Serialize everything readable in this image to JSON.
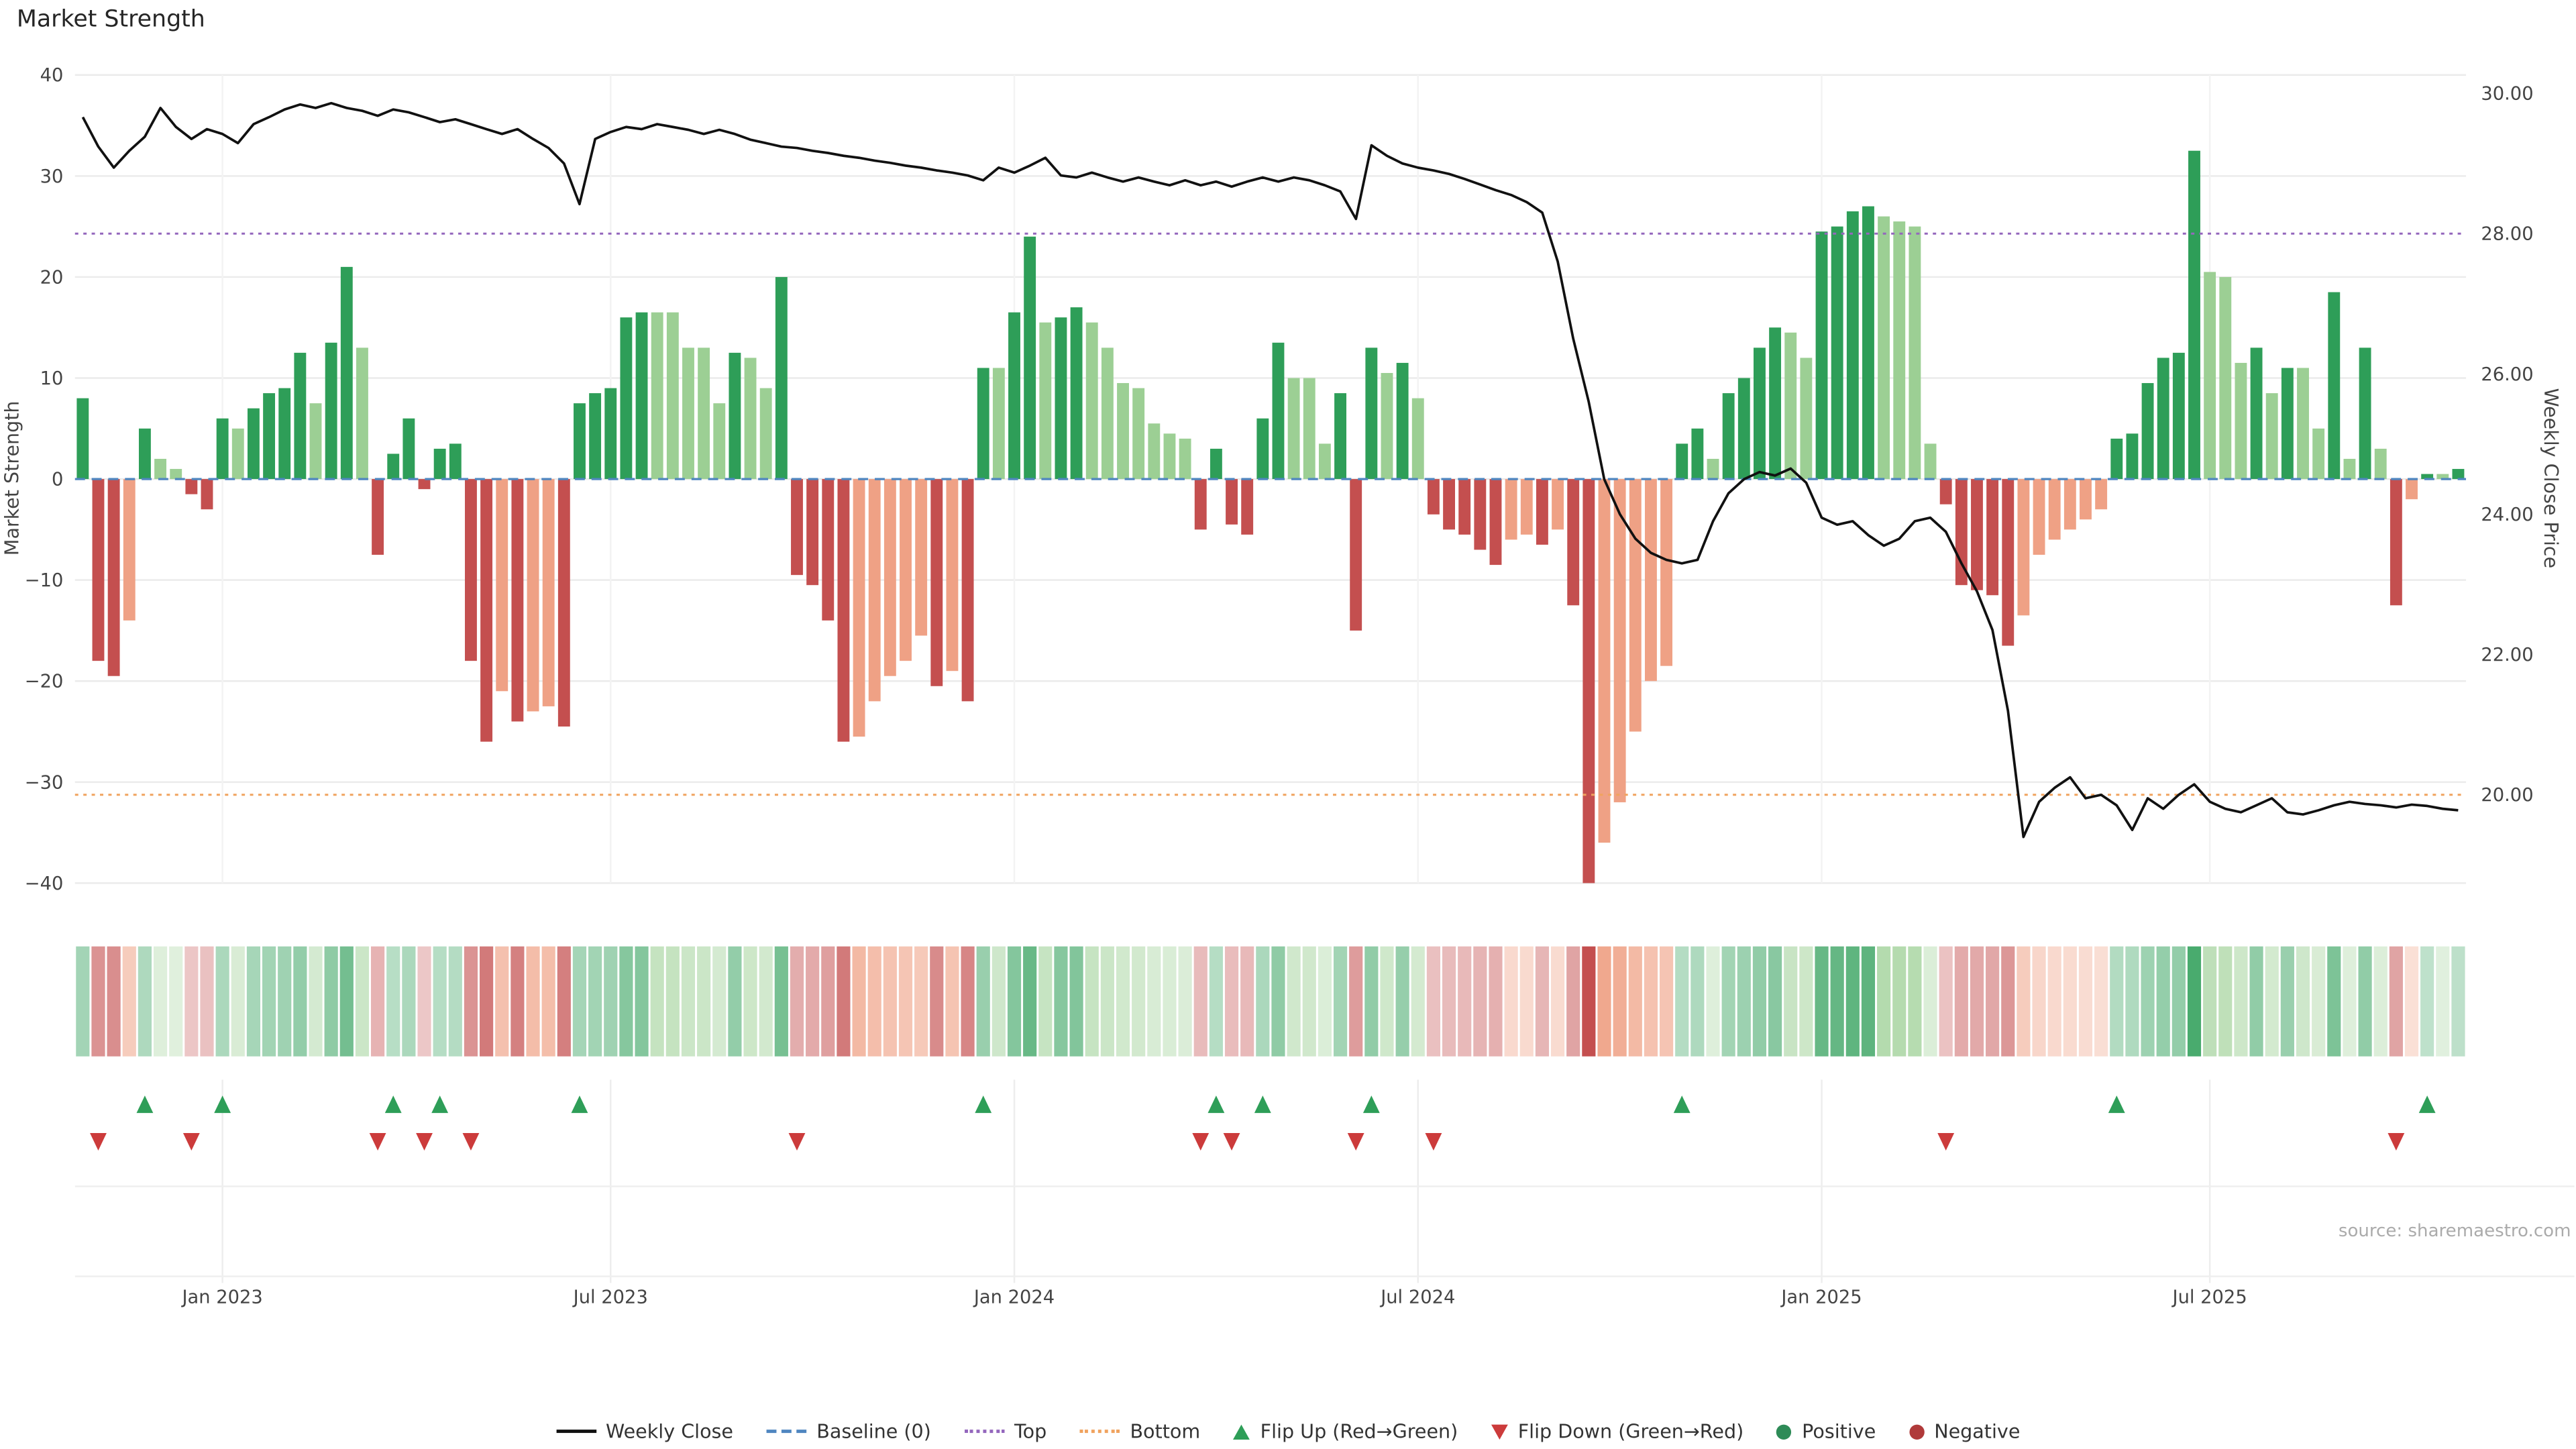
{
  "title": "Market Strength",
  "source": "source: sharemaestro.com",
  "axes": {
    "left_label": "Market Strength",
    "right_label": "Weekly Close Price",
    "left_ticks": [
      40,
      30,
      20,
      10,
      0,
      -10,
      -20,
      -30,
      -40
    ],
    "right_ticks": [
      {
        "value": 30,
        "label": "30.00"
      },
      {
        "value": 28,
        "label": "28.00"
      },
      {
        "value": 26,
        "label": "26.00"
      },
      {
        "value": 24,
        "label": "24.00"
      },
      {
        "value": 22,
        "label": "22.00"
      },
      {
        "value": 20,
        "label": "20.00"
      }
    ]
  },
  "thresholds": {
    "baseline": 0,
    "top_price": 28.0,
    "bottom_price": 20.0
  },
  "colors": {
    "bar_pos_dark": "#2e9e58",
    "bar_pos_light": "#9ccf94",
    "bar_neg_dark": "#c44f4f",
    "bar_neg_light": "#efa185",
    "line": "#111111",
    "baseline": "#4f86c0",
    "top": "#9467bd",
    "bottom": "#f0a35f",
    "grid": "#ebebeb",
    "grid_faint": "#f3f3f3",
    "flip_up": "#2e9e58",
    "flip_down": "#cc3b3b",
    "positive_dot": "#2e8b57",
    "negative_dot": "#b03a3a"
  },
  "legend": [
    {
      "label": "Weekly Close",
      "swatch": "line",
      "color": "#111111",
      "name": "legend-weekly-close"
    },
    {
      "label": "Baseline (0)",
      "swatch": "dashed",
      "color": "#4f86c0",
      "name": "legend-baseline"
    },
    {
      "label": "Top",
      "swatch": "dotted",
      "color": "#9467bd",
      "name": "legend-top"
    },
    {
      "label": "Bottom",
      "swatch": "dotted",
      "color": "#f0a35f",
      "name": "legend-bottom"
    },
    {
      "label": "Flip Up (Red→Green)",
      "swatch": "triangle-up",
      "color": "#2e9e58",
      "name": "legend-flip-up"
    },
    {
      "label": "Flip Down (Green→Red)",
      "swatch": "triangle-down",
      "color": "#cc3b3b",
      "name": "legend-flip-down"
    },
    {
      "label": "Positive",
      "swatch": "circle",
      "color": "#2e8b57",
      "name": "legend-positive"
    },
    {
      "label": "Negative",
      "swatch": "circle",
      "color": "#b03a3a",
      "name": "legend-negative"
    }
  ],
  "chart_data": {
    "type": "combo_bar_line_dual_axis",
    "x_unit": "week",
    "n_points": 154,
    "left_axis": {
      "label": "Market Strength",
      "min": -40,
      "max": 40
    },
    "right_axis": {
      "label": "Weekly Close Price",
      "min": 18.7,
      "max": 30.3
    },
    "x_ticks": [
      {
        "index": 9,
        "label": "Jan 2023"
      },
      {
        "index": 34,
        "label": "Jul 2023"
      },
      {
        "index": 60,
        "label": "Jan 2024"
      },
      {
        "index": 86,
        "label": "Jul 2024"
      },
      {
        "index": 112,
        "label": "Jan 2025"
      },
      {
        "index": 137,
        "label": "Jul 2025"
      }
    ],
    "strength_values": [
      8,
      -18,
      -19.5,
      -14,
      5,
      2,
      1,
      -1.5,
      -3,
      6,
      5,
      7,
      8.5,
      9,
      12.5,
      7.5,
      13.5,
      21,
      13,
      -7.5,
      2.5,
      6,
      -1,
      3,
      3.5,
      -18,
      -26,
      -21,
      -24,
      -23,
      -22.5,
      -24.5,
      7.5,
      8.5,
      9,
      16,
      16.5,
      16.5,
      16.5,
      13,
      13,
      7.5,
      12.5,
      12,
      9,
      20,
      -9.5,
      -10.5,
      -14,
      -26,
      -25.5,
      -22,
      -19.5,
      -18,
      -15.5,
      -20.5,
      -19,
      -22,
      11,
      11,
      16.5,
      24,
      15.5,
      16,
      17,
      15.5,
      13,
      9.5,
      9,
      5.5,
      4.5,
      4,
      -5,
      3,
      -4.5,
      -5.5,
      6,
      13.5,
      10,
      10,
      3.5,
      8.5,
      -15,
      13,
      10.5,
      11.5,
      8,
      -3.5,
      -5,
      -5.5,
      -7,
      -8.5,
      -6,
      -5.5,
      -6.5,
      -5,
      -12.5,
      -40,
      -36,
      -32,
      -25,
      -20,
      -18.5,
      3.5,
      5,
      2,
      8.5,
      10,
      13,
      15,
      14.5,
      12,
      24.5,
      25,
      26.5,
      27,
      26,
      25.5,
      25,
      3.5,
      -2.5,
      -10.5,
      -11,
      -11.5,
      -16.5,
      -13.5,
      -7.5,
      -6,
      -5,
      -4,
      -3,
      4,
      4.5,
      9.5,
      12,
      12.5,
      32.5,
      20.5,
      20,
      11.5,
      13,
      8.5,
      11,
      11,
      5,
      18.5,
      2,
      13,
      3,
      -12.5,
      -2,
      0.5,
      0.5,
      1
    ],
    "close_prices": [
      29.66,
      29.24,
      28.94,
      29.18,
      29.38,
      29.79,
      29.52,
      29.35,
      29.49,
      29.42,
      29.29,
      29.56,
      29.66,
      29.77,
      29.84,
      29.79,
      29.86,
      29.79,
      29.75,
      29.68,
      29.77,
      29.73,
      29.66,
      29.59,
      29.63,
      29.56,
      29.49,
      29.42,
      29.49,
      29.35,
      29.22,
      29.0,
      28.42,
      29.35,
      29.45,
      29.52,
      29.49,
      29.56,
      29.52,
      29.48,
      29.42,
      29.48,
      29.42,
      29.34,
      29.29,
      29.24,
      29.22,
      29.18,
      29.15,
      29.11,
      29.08,
      29.04,
      29.01,
      28.97,
      28.94,
      28.9,
      28.87,
      28.83,
      28.76,
      28.94,
      28.87,
      28.97,
      29.08,
      28.83,
      28.8,
      28.87,
      28.8,
      28.74,
      28.8,
      28.74,
      28.69,
      28.76,
      28.69,
      28.74,
      28.67,
      28.74,
      28.8,
      28.74,
      28.8,
      28.76,
      28.69,
      28.6,
      28.21,
      29.26,
      29.11,
      29.0,
      28.94,
      28.9,
      28.85,
      28.78,
      28.7,
      28.62,
      28.55,
      28.45,
      28.3,
      27.6,
      26.5,
      25.6,
      24.5,
      24.0,
      23.65,
      23.45,
      23.35,
      23.3,
      23.35,
      23.9,
      24.3,
      24.5,
      24.6,
      24.55,
      24.65,
      24.45,
      23.95,
      23.85,
      23.9,
      23.7,
      23.55,
      23.65,
      23.9,
      23.95,
      23.75,
      23.3,
      22.9,
      22.35,
      21.2,
      19.4,
      19.9,
      20.1,
      20.25,
      19.95,
      20.0,
      19.85,
      19.5,
      19.95,
      19.8,
      20.0,
      20.15,
      19.9,
      19.8,
      19.75,
      19.85,
      19.95,
      19.75,
      19.72,
      19.78,
      19.85,
      19.9,
      19.87,
      19.85,
      19.82,
      19.86,
      19.84,
      19.8,
      19.78
    ]
  }
}
